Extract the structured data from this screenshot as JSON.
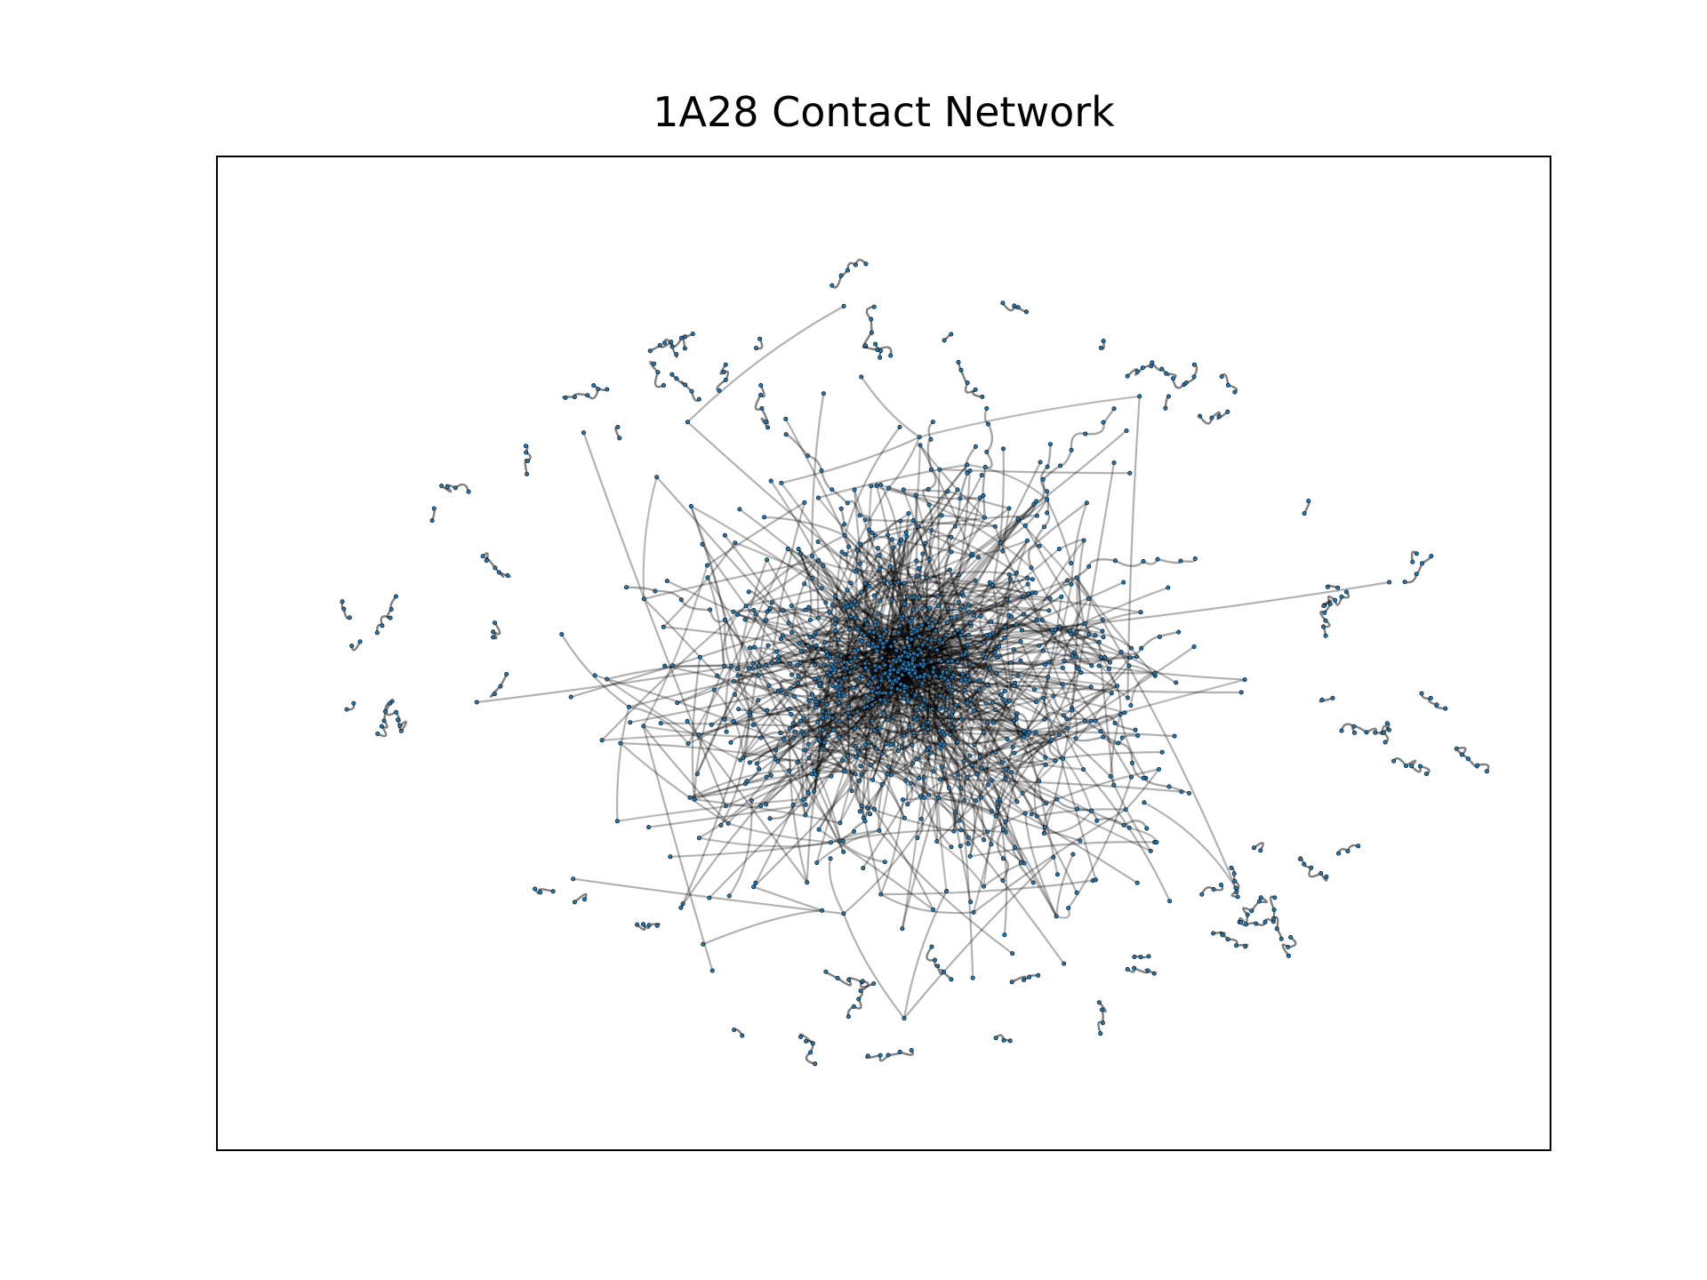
{
  "title": "1A28 Contact Network",
  "colors": {
    "node_fill": "#1f77b4",
    "node_edge": "#000000",
    "edge": "#000000",
    "background": "#ffffff",
    "frame": "#000000"
  }
}
